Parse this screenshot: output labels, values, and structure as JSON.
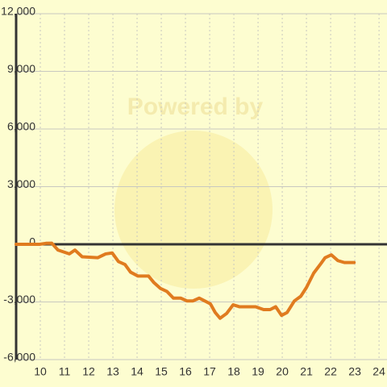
{
  "chart_data": {
    "type": "line",
    "watermark": "Powered by",
    "x": [
      9.0,
      9.97,
      10.23,
      10.47,
      10.73,
      11.2,
      11.43,
      11.73,
      12.37,
      12.7,
      12.97,
      13.23,
      13.5,
      13.73,
      14.03,
      14.47,
      14.7,
      14.97,
      15.23,
      15.5,
      15.8,
      16.07,
      16.3,
      16.57,
      16.8,
      17.03,
      17.23,
      17.43,
      17.7,
      17.97,
      18.23,
      18.9,
      19.23,
      19.5,
      19.73,
      19.97,
      20.2,
      20.5,
      20.77,
      21.0,
      21.3,
      21.6,
      21.77,
      22.03,
      22.3,
      22.57,
      22.97
    ],
    "series": [
      {
        "color": "#e07b1f",
        "values": [
          0,
          0,
          50,
          60,
          -300,
          -500,
          -300,
          -650,
          -700,
          -500,
          -450,
          -900,
          -1050,
          -1450,
          -1650,
          -1650,
          -2000,
          -2300,
          -2450,
          -2800,
          -2800,
          -2950,
          -2950,
          -2800,
          -2950,
          -3100,
          -3550,
          -3850,
          -3600,
          -3150,
          -3250,
          -3250,
          -3400,
          -3400,
          -3250,
          -3700,
          -3550,
          -2950,
          -2700,
          -2250,
          -1500,
          -1000,
          -700,
          -550,
          -850,
          -950,
          -950
        ]
      }
    ],
    "xlim": [
      9.0,
      24.33
    ],
    "xticks": [
      10,
      11,
      12,
      13,
      14,
      15,
      16,
      17,
      18,
      19,
      20,
      21,
      22,
      23,
      24
    ],
    "ylim": [
      -6000,
      12000
    ],
    "yticks": [
      {
        "value": -6000,
        "label": "-6,000"
      },
      {
        "value": -3000,
        "label": "-3,000"
      },
      0,
      {
        "value": 3000,
        "label": "3,000"
      },
      {
        "value": 6000,
        "label": "6,000"
      },
      {
        "value": 9000,
        "label": "9,000"
      },
      {
        "value": 12000,
        "label": "12,000"
      }
    ],
    "grid": true
  }
}
